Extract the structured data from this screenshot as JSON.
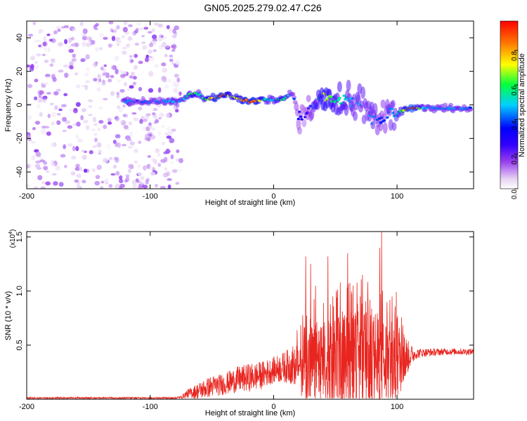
{
  "title": "GN05.2025.279.02.47.C26",
  "colors": {
    "axis": "#000000",
    "snr_line": "#e8251f",
    "noise_purple": "#7a1fe0"
  },
  "chart_data": [
    {
      "type": "heatmap",
      "name": "spectrogram",
      "xlabel": "Height of straight line (km)",
      "ylabel": "Frequency (Hz)",
      "xlim": [
        -200,
        162
      ],
      "ylim": [
        -50,
        50
      ],
      "xticks": [
        -200,
        -100,
        0,
        100
      ],
      "yticks": [
        -40,
        -20,
        0,
        20,
        40
      ],
      "grid": false,
      "colorbar": {
        "label": "Normalized spectral amplitude",
        "range": [
          0.0,
          0.97
        ],
        "ticks": [
          "0.0",
          "0.2",
          "0.4",
          "0.6",
          "0.8"
        ],
        "colormap": [
          "#ffffff",
          "#e6d2f4",
          "#9a40ee",
          "#3300ff",
          "#0000ff",
          "#00d0ff",
          "#00ff40",
          "#ffff00",
          "#ff8000",
          "#ff0000"
        ]
      },
      "ridge": {
        "x": [
          -122,
          -110,
          -100,
          -90,
          -80,
          -75,
          -70,
          -65,
          -60,
          -55,
          -50,
          -45,
          -40,
          -35,
          -30,
          -25,
          -20,
          -15,
          -10,
          -5,
          0,
          5,
          10,
          15,
          20,
          25,
          30,
          35,
          40,
          45,
          50,
          55,
          60,
          65,
          70,
          75,
          80,
          85,
          90,
          95,
          100,
          105,
          110,
          115,
          120,
          130,
          140,
          150,
          160
        ],
        "y": [
          2,
          2,
          2,
          2,
          2,
          3,
          5,
          7,
          6,
          3,
          4,
          5,
          6,
          5,
          4,
          3,
          2,
          2,
          3,
          3,
          3,
          3,
          4,
          8,
          -6,
          -8,
          -3,
          3,
          5,
          4,
          3,
          3,
          3,
          2,
          3,
          -2,
          -8,
          -10,
          -7,
          -4,
          -5,
          -3,
          -2,
          -2,
          -2,
          -2,
          -2,
          -2,
          -2
        ],
        "amplitude": [
          0.55,
          0.45,
          0.5,
          0.5,
          0.55,
          0.5,
          0.6,
          0.7,
          0.55,
          0.65,
          0.8,
          0.95,
          0.85,
          0.7,
          0.75,
          0.85,
          0.9,
          0.9,
          0.7,
          0.5,
          0.55,
          0.65,
          0.6,
          0.5,
          0.4,
          0.35,
          0.45,
          0.6,
          0.75,
          0.7,
          0.6,
          0.6,
          0.55,
          0.5,
          0.55,
          0.5,
          0.55,
          0.45,
          0.45,
          0.5,
          0.55,
          0.7,
          0.95,
          0.9,
          0.55,
          0.5,
          0.5,
          0.55,
          0.45
        ]
      },
      "noise_region": {
        "x": [
          -200,
          -75
        ],
        "y": [
          -50,
          50
        ],
        "amplitude": [
          0.05,
          0.25
        ]
      }
    },
    {
      "type": "line",
      "name": "snr",
      "xlabel": "Height of straight line (km)",
      "ylabel": "SNR (10 * v/v)",
      "yscale_label": "(x10",
      "yscale_exp": "4",
      "yscale_close": ")",
      "xlim": [
        -200,
        162
      ],
      "ylim": [
        0,
        1.55
      ],
      "xticks": [
        -200,
        -100,
        0,
        100
      ],
      "yticks": [
        "0.5",
        "1.0",
        "1.5"
      ],
      "grid": false,
      "envelope": {
        "x": [
          -200,
          -150,
          -100,
          -80,
          -75,
          -70,
          -60,
          -50,
          -40,
          -30,
          -20,
          -10,
          0,
          10,
          20,
          25,
          30,
          40,
          50,
          60,
          70,
          80,
          90,
          100,
          110,
          115,
          120,
          140,
          160
        ],
        "base": [
          0.01,
          0.01,
          0.01,
          0.01,
          0.02,
          0.05,
          0.08,
          0.12,
          0.14,
          0.18,
          0.2,
          0.22,
          0.27,
          0.3,
          0.33,
          0.3,
          0.3,
          0.3,
          0.3,
          0.3,
          0.32,
          0.32,
          0.32,
          0.36,
          0.4,
          0.42,
          0.43,
          0.44,
          0.44
        ],
        "amp": [
          0.01,
          0.01,
          0.01,
          0.01,
          0.01,
          0.04,
          0.08,
          0.1,
          0.1,
          0.12,
          0.13,
          0.13,
          0.12,
          0.15,
          0.22,
          0.35,
          0.4,
          0.42,
          0.45,
          0.5,
          0.5,
          0.5,
          0.45,
          0.4,
          0.12,
          0.05,
          0.04,
          0.03,
          0.03
        ]
      },
      "peaks": [
        {
          "x": 26,
          "y": 1.32
        },
        {
          "x": 30,
          "y": 1.25
        },
        {
          "x": 34,
          "y": 1.05
        },
        {
          "x": 44,
          "y": 1.32
        },
        {
          "x": 48,
          "y": 0.95
        },
        {
          "x": 54,
          "y": 1.08
        },
        {
          "x": 60,
          "y": 1.35
        },
        {
          "x": 63,
          "y": 1.0
        },
        {
          "x": 72,
          "y": 1.15
        },
        {
          "x": 78,
          "y": 0.92
        },
        {
          "x": 86,
          "y": 1.4
        },
        {
          "x": 87.5,
          "y": 1.55
        },
        {
          "x": 96,
          "y": 0.95
        },
        {
          "x": 100,
          "y": 0.75
        }
      ]
    }
  ]
}
